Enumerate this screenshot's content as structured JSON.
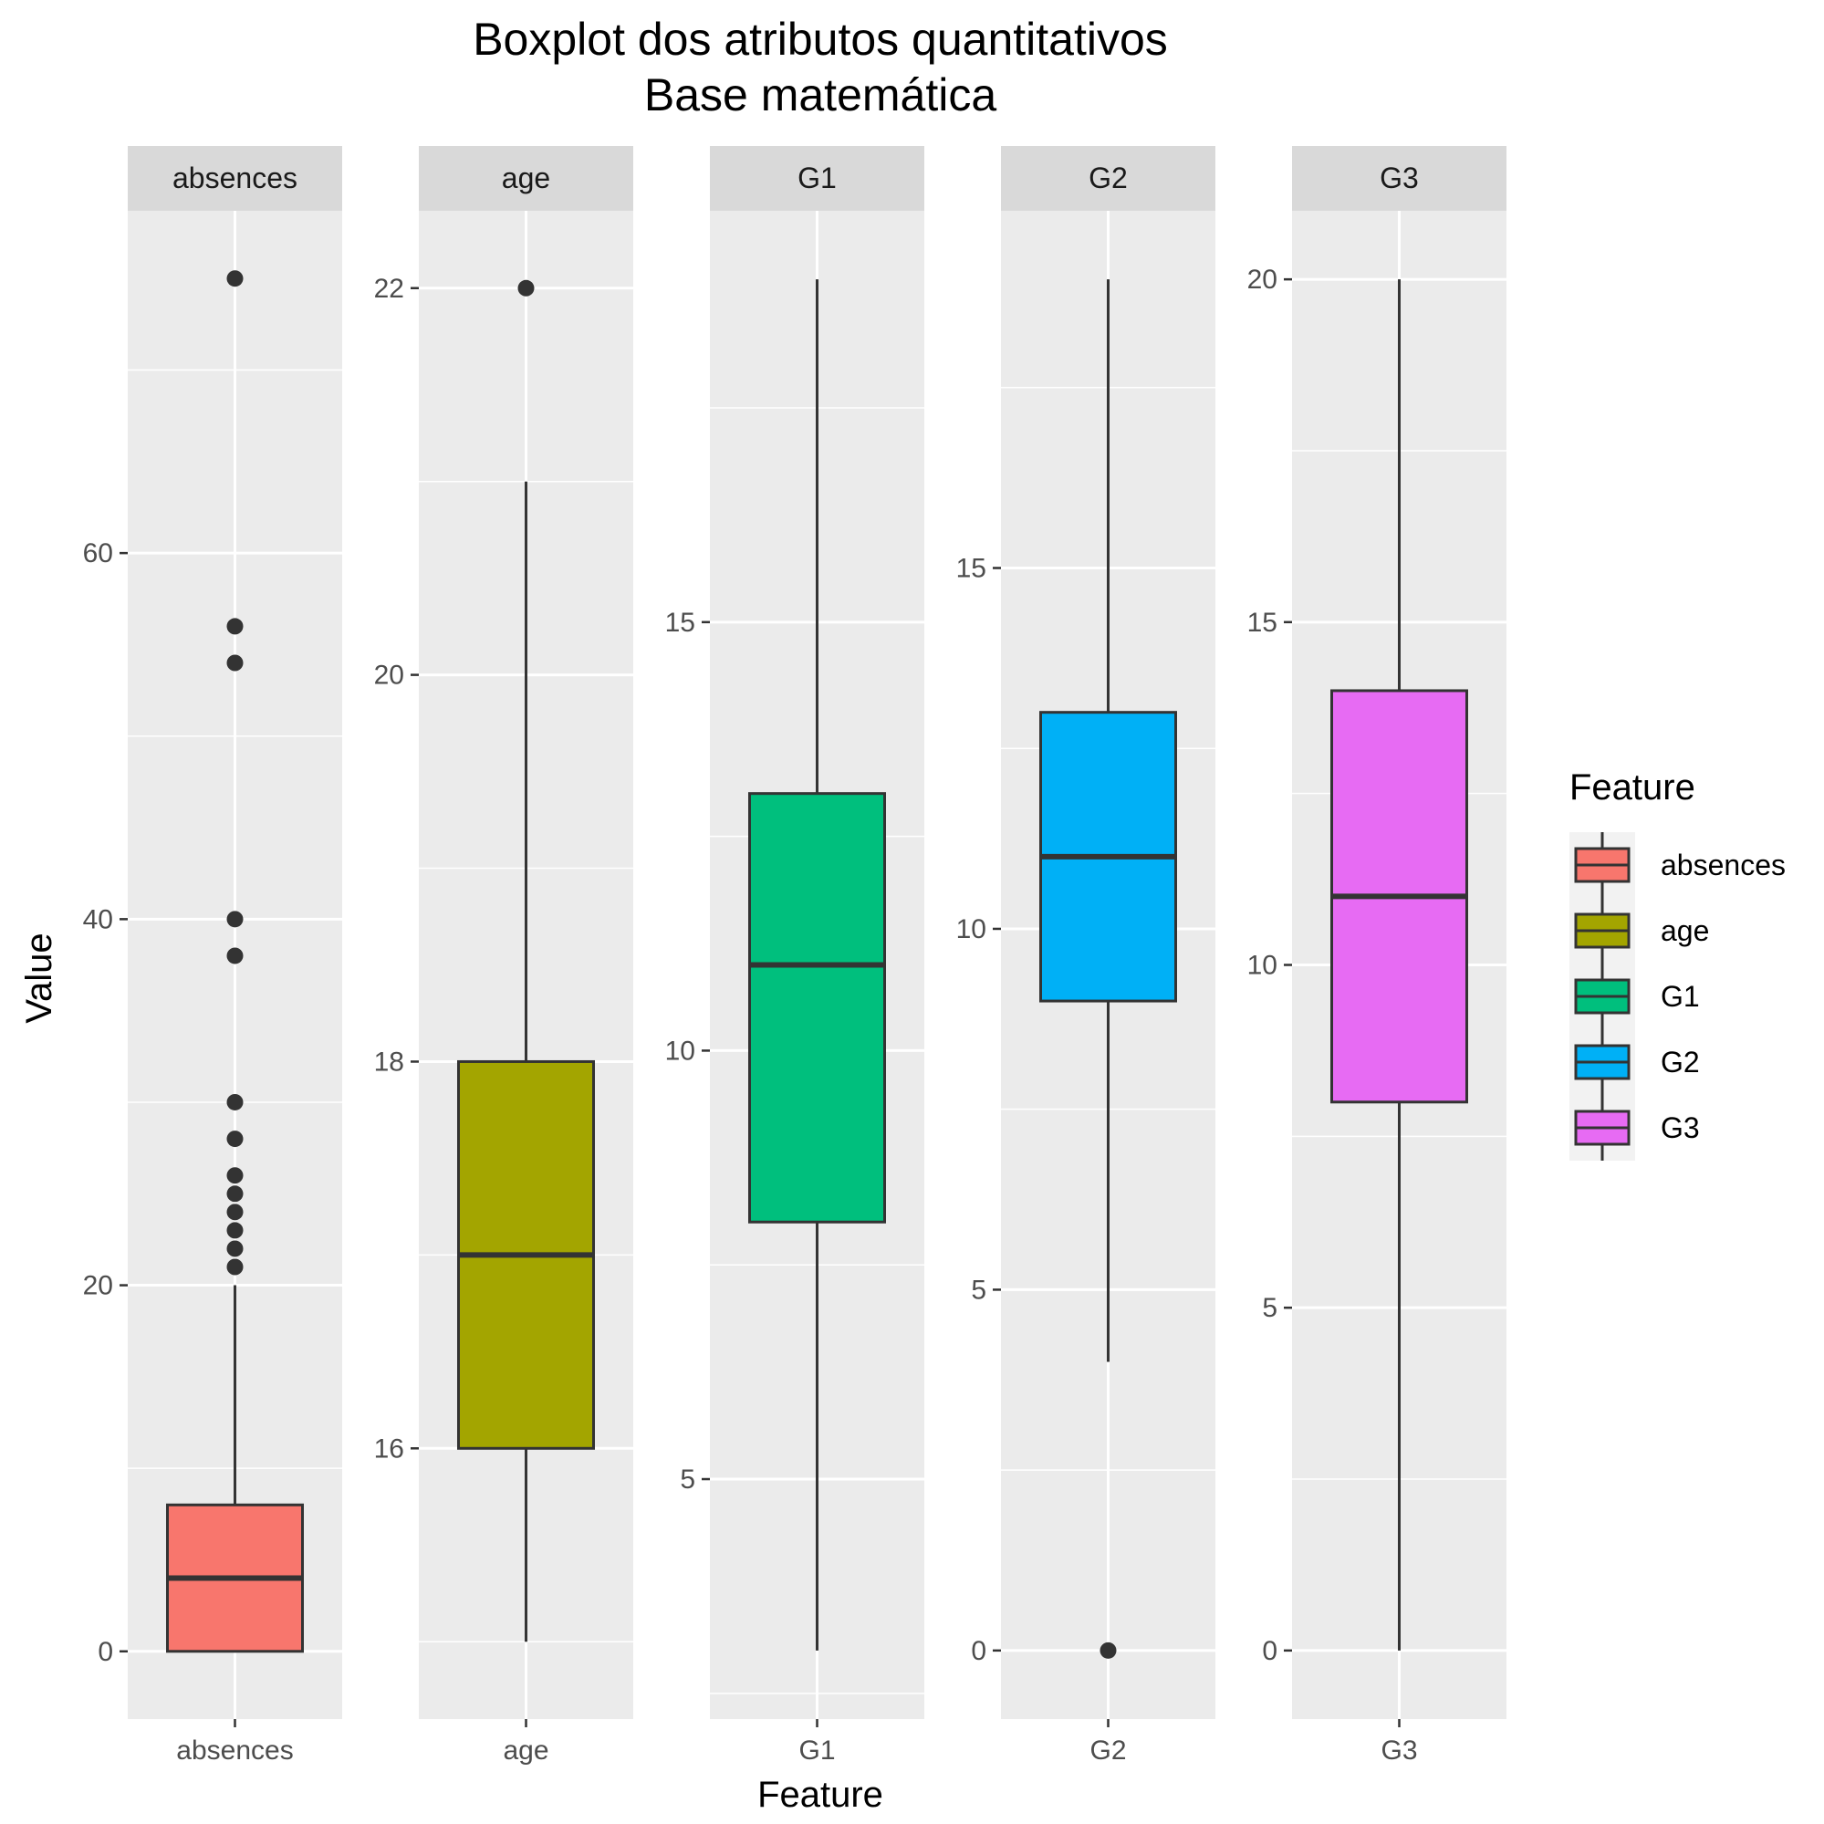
{
  "chart_data": {
    "type": "boxplot",
    "title": [
      "Boxplot dos atributos quantitativos",
      "Base matemática"
    ],
    "xlabel": "Feature",
    "ylabel": "Value",
    "legend": {
      "title": "Feature",
      "position": "right"
    },
    "grid": true,
    "facets": [
      {
        "name": "absences",
        "color": "#F8766D",
        "ylim": [
          -3.7,
          78.7
        ],
        "ticks": [
          0,
          20,
          40,
          60
        ],
        "min": 0,
        "q1": 0,
        "median": 4,
        "q3": 8,
        "max": 20,
        "outliers": [
          21,
          22,
          23,
          24,
          25,
          26,
          28,
          30,
          38,
          40,
          54,
          56,
          75
        ]
      },
      {
        "name": "age",
        "color": "#A3A500",
        "ylim": [
          14.6,
          22.4
        ],
        "ticks": [
          16,
          18,
          20,
          22
        ],
        "min": 15,
        "q1": 16,
        "median": 17,
        "q3": 18,
        "max": 21,
        "outliers": [
          22
        ]
      },
      {
        "name": "G1",
        "color": "#00BF7D",
        "ylim": [
          2.2,
          19.8
        ],
        "ticks": [
          5,
          10,
          15
        ],
        "min": 3,
        "q1": 8,
        "median": 11,
        "q3": 13,
        "max": 19,
        "outliers": []
      },
      {
        "name": "G2",
        "color": "#00B0F6",
        "ylim": [
          -0.95,
          19.95
        ],
        "ticks": [
          0,
          5,
          10,
          15
        ],
        "min": 4,
        "q1": 9,
        "median": 11,
        "q3": 13,
        "max": 19,
        "outliers": [
          0
        ]
      },
      {
        "name": "G3",
        "color": "#E76BF3",
        "ylim": [
          -1.0,
          21.0
        ],
        "ticks": [
          0,
          5,
          10,
          15,
          20
        ],
        "min": 0,
        "q1": 8,
        "median": 11,
        "q3": 14,
        "max": 20,
        "outliers": []
      }
    ]
  }
}
